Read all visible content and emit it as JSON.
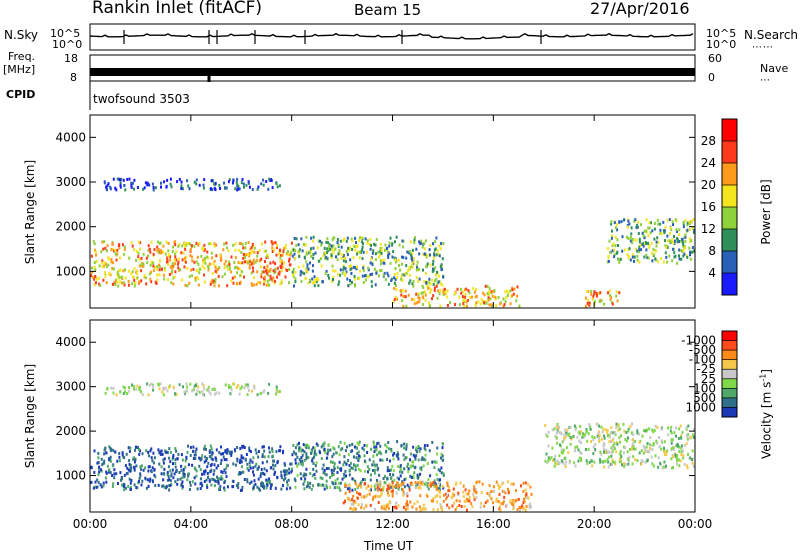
{
  "header": {
    "station": "Rankin Inlet (fitACF)",
    "beam": "Beam 15",
    "date": "27/Apr/2016"
  },
  "side_labels": {
    "nsky": "N.Sky",
    "nsearch": "N.Search",
    "freq": "Freq.",
    "freq_unit": "[MHz]",
    "nave": "Nave",
    "cpid": "CPID",
    "cpid_value": "twofsound 3503"
  },
  "strip_ticks": {
    "nsky_left": [
      "10^5",
      "10^0"
    ],
    "nsky_right": [
      "10^5",
      "10^0"
    ],
    "freq_left": [
      "18",
      "8"
    ],
    "nave_right": [
      "60",
      "0"
    ]
  },
  "chart_data": [
    {
      "type": "heatmap",
      "title": "",
      "xlabel": "Time UT",
      "ylabel": "Slant Range [km]",
      "x_ticks": [
        "00:00",
        "04:00",
        "08:00",
        "12:00",
        "16:00",
        "20:00",
        "00:00"
      ],
      "y_ticks": [
        1000,
        2000,
        3000,
        4000
      ],
      "xlim_hours": [
        0,
        24
      ],
      "ylim_km": [
        180,
        4500
      ],
      "colorbar": {
        "label": "Power [dB]",
        "ticks": [
          "4",
          "8",
          "12",
          "16",
          "20",
          "24",
          "28"
        ],
        "colors": [
          "#1a1aff",
          "#2a5fb8",
          "#2f8f5a",
          "#8fd13a",
          "#f4e51e",
          "#ff9a1a",
          "#ff3a1a",
          "#ff0000"
        ]
      },
      "echo_regions": [
        {
          "t0": 0.0,
          "t1": 8.0,
          "r0": 700,
          "r1": 1700,
          "value": "high"
        },
        {
          "t0": 8.0,
          "t1": 14.0,
          "r0": 700,
          "r1": 1800,
          "value": "medium"
        },
        {
          "t0": 12.0,
          "t1": 17.0,
          "r0": 250,
          "r1": 700,
          "value": "high"
        },
        {
          "t0": 0.5,
          "t1": 7.5,
          "r0": 2850,
          "r1": 3100,
          "value": "low"
        },
        {
          "t0": 19.5,
          "t1": 21.0,
          "r0": 250,
          "r1": 600,
          "value": "high"
        },
        {
          "t0": 20.5,
          "t1": 24.0,
          "r0": 1200,
          "r1": 2200,
          "value": "medium"
        }
      ]
    },
    {
      "type": "heatmap",
      "title": "",
      "xlabel": "Time UT",
      "ylabel": "Slant Range [km]",
      "x_ticks": [
        "00:00",
        "04:00",
        "08:00",
        "12:00",
        "16:00",
        "20:00",
        "00:00"
      ],
      "y_ticks": [
        1000,
        2000,
        3000,
        4000
      ],
      "xlim_hours": [
        0,
        24
      ],
      "ylim_km": [
        180,
        4500
      ],
      "colorbar": {
        "label": "Velocity [m s^-1]",
        "ticks": [
          "1000",
          "500",
          "100",
          "25",
          "-25",
          "-100",
          "-500",
          "-1000"
        ],
        "colors": [
          "#1a3ab8",
          "#2f6f8a",
          "#4fa86a",
          "#7fd84a",
          "#c8c8c8",
          "#f5c84a",
          "#ff8a1a",
          "#ff4a1a",
          "#ff0000"
        ]
      },
      "echo_regions": [
        {
          "t0": 0.0,
          "t1": 8.0,
          "r0": 700,
          "r1": 1700,
          "value": "positive"
        },
        {
          "t0": 8.0,
          "t1": 14.0,
          "r0": 700,
          "r1": 1800,
          "value": "mixed"
        },
        {
          "t0": 10.0,
          "t1": 17.5,
          "r0": 250,
          "r1": 900,
          "value": "negative"
        },
        {
          "t0": 0.5,
          "t1": 7.5,
          "r0": 2850,
          "r1": 3100,
          "value": "near-zero"
        },
        {
          "t0": 18.0,
          "t1": 24.0,
          "r0": 1200,
          "r1": 2200,
          "value": "near-zero"
        }
      ]
    }
  ]
}
